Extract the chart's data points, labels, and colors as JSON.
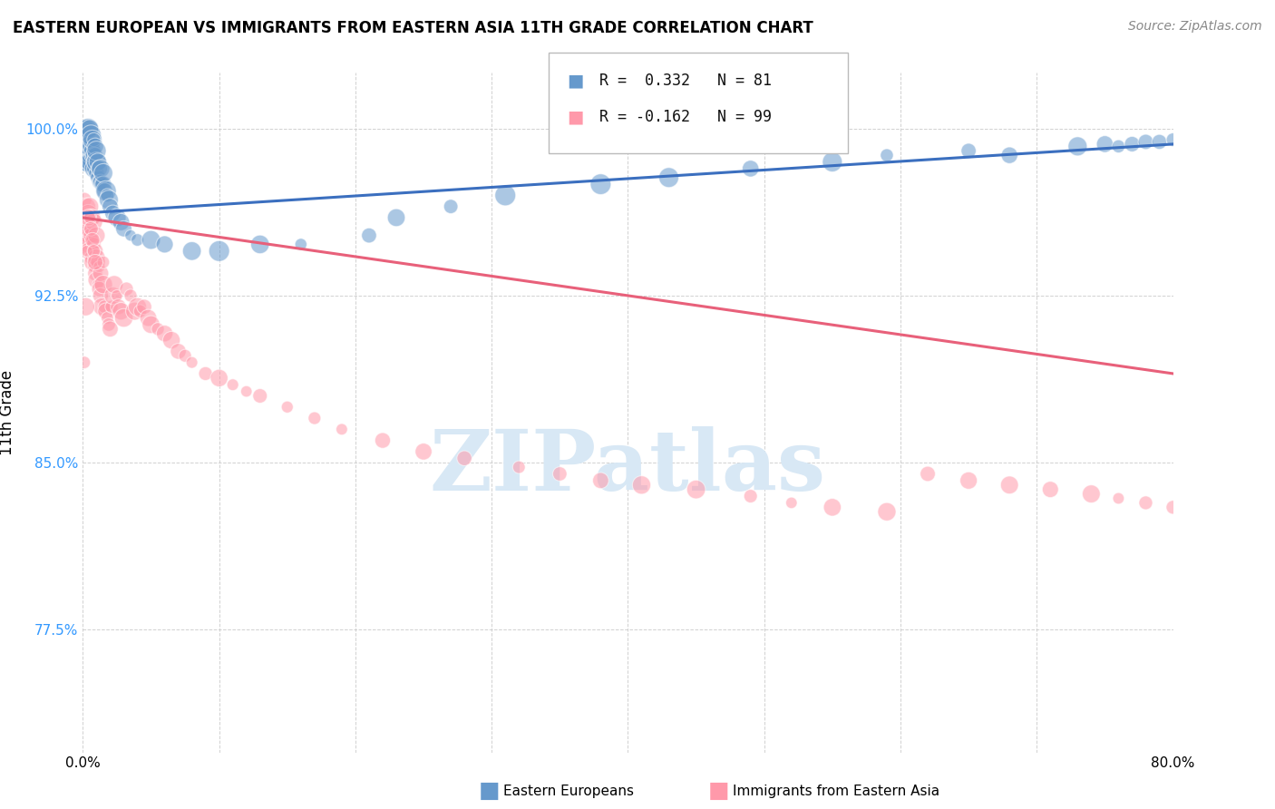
{
  "title": "EASTERN EUROPEAN VS IMMIGRANTS FROM EASTERN ASIA 11TH GRADE CORRELATION CHART",
  "source": "Source: ZipAtlas.com",
  "ylabel": "11th Grade",
  "xlim": [
    0.0,
    0.8
  ],
  "ylim": [
    0.72,
    1.025
  ],
  "x_ticks": [
    0.0,
    0.1,
    0.2,
    0.3,
    0.4,
    0.5,
    0.6,
    0.7,
    0.8
  ],
  "x_tick_labels": [
    "0.0%",
    "",
    "",
    "",
    "",
    "",
    "",
    "",
    "80.0%"
  ],
  "y_ticks": [
    0.775,
    0.85,
    0.925,
    1.0
  ],
  "y_tick_labels": [
    "77.5%",
    "85.0%",
    "92.5%",
    "100.0%"
  ],
  "blue_R": 0.332,
  "blue_N": 81,
  "pink_R": -0.162,
  "pink_N": 99,
  "blue_color": "#6699CC",
  "pink_color": "#FF99AA",
  "blue_line_color": "#3B6FBF",
  "pink_line_color": "#E8607A",
  "legend1_label": "Eastern Europeans",
  "legend2_label": "Immigrants from Eastern Asia",
  "watermark": "ZIPatlas",
  "blue_line_x0": 0.0,
  "blue_line_y0": 0.962,
  "blue_line_x1": 0.8,
  "blue_line_y1": 0.993,
  "pink_line_x0": 0.0,
  "pink_line_y0": 0.96,
  "pink_line_x1": 0.8,
  "pink_line_y1": 0.89,
  "blue_scatter_x": [
    0.001,
    0.001,
    0.001,
    0.002,
    0.002,
    0.002,
    0.002,
    0.003,
    0.003,
    0.003,
    0.003,
    0.003,
    0.004,
    0.004,
    0.004,
    0.004,
    0.005,
    0.005,
    0.005,
    0.005,
    0.005,
    0.006,
    0.006,
    0.006,
    0.006,
    0.007,
    0.007,
    0.007,
    0.008,
    0.008,
    0.008,
    0.009,
    0.009,
    0.009,
    0.01,
    0.01,
    0.01,
    0.011,
    0.011,
    0.012,
    0.012,
    0.013,
    0.013,
    0.014,
    0.015,
    0.015,
    0.016,
    0.017,
    0.018,
    0.019,
    0.02,
    0.022,
    0.025,
    0.028,
    0.03,
    0.035,
    0.04,
    0.05,
    0.06,
    0.08,
    0.1,
    0.13,
    0.16,
    0.21,
    0.23,
    0.27,
    0.31,
    0.38,
    0.43,
    0.49,
    0.55,
    0.59,
    0.65,
    0.68,
    0.73,
    0.75,
    0.76,
    0.77,
    0.78,
    0.79,
    0.8
  ],
  "blue_scatter_y": [
    0.99,
    0.985,
    0.995,
    0.985,
    0.99,
    0.995,
    1.0,
    0.985,
    0.99,
    0.995,
    1.0,
    0.985,
    0.985,
    0.99,
    0.995,
    1.0,
    0.985,
    0.988,
    0.992,
    0.995,
    1.0,
    0.985,
    0.988,
    0.992,
    0.997,
    0.985,
    0.99,
    0.995,
    0.982,
    0.988,
    0.995,
    0.982,
    0.988,
    0.992,
    0.98,
    0.985,
    0.99,
    0.978,
    0.985,
    0.976,
    0.982,
    0.976,
    0.982,
    0.975,
    0.975,
    0.98,
    0.972,
    0.972,
    0.97,
    0.968,
    0.965,
    0.962,
    0.96,
    0.958,
    0.955,
    0.952,
    0.95,
    0.95,
    0.948,
    0.945,
    0.945,
    0.948,
    0.948,
    0.952,
    0.96,
    0.965,
    0.97,
    0.975,
    0.978,
    0.982,
    0.985,
    0.988,
    0.99,
    0.988,
    0.992,
    0.993,
    0.992,
    0.993,
    0.994,
    0.994,
    0.995
  ],
  "pink_scatter_x": [
    0.001,
    0.001,
    0.002,
    0.002,
    0.003,
    0.003,
    0.003,
    0.004,
    0.004,
    0.004,
    0.005,
    0.005,
    0.005,
    0.006,
    0.006,
    0.006,
    0.007,
    0.007,
    0.007,
    0.008,
    0.008,
    0.008,
    0.009,
    0.009,
    0.01,
    0.01,
    0.01,
    0.011,
    0.011,
    0.012,
    0.012,
    0.013,
    0.013,
    0.014,
    0.015,
    0.015,
    0.016,
    0.017,
    0.018,
    0.019,
    0.02,
    0.021,
    0.022,
    0.023,
    0.025,
    0.026,
    0.028,
    0.03,
    0.032,
    0.035,
    0.038,
    0.04,
    0.042,
    0.045,
    0.048,
    0.05,
    0.055,
    0.06,
    0.065,
    0.07,
    0.075,
    0.08,
    0.09,
    0.1,
    0.11,
    0.12,
    0.13,
    0.15,
    0.17,
    0.19,
    0.22,
    0.25,
    0.28,
    0.32,
    0.35,
    0.38,
    0.41,
    0.45,
    0.49,
    0.52,
    0.55,
    0.59,
    0.62,
    0.65,
    0.68,
    0.71,
    0.74,
    0.76,
    0.78,
    0.8,
    0.001,
    0.002,
    0.003,
    0.004,
    0.005,
    0.006,
    0.007,
    0.008,
    0.009
  ],
  "pink_scatter_y": [
    0.968,
    0.955,
    0.96,
    0.95,
    0.96,
    0.952,
    0.965,
    0.948,
    0.955,
    0.962,
    0.945,
    0.955,
    0.965,
    0.942,
    0.952,
    0.96,
    0.94,
    0.95,
    0.96,
    0.938,
    0.948,
    0.958,
    0.935,
    0.945,
    0.932,
    0.942,
    0.952,
    0.93,
    0.94,
    0.928,
    0.938,
    0.925,
    0.935,
    0.92,
    0.93,
    0.94,
    0.92,
    0.918,
    0.915,
    0.912,
    0.91,
    0.92,
    0.925,
    0.93,
    0.925,
    0.92,
    0.918,
    0.915,
    0.928,
    0.925,
    0.918,
    0.92,
    0.918,
    0.92,
    0.915,
    0.912,
    0.91,
    0.908,
    0.905,
    0.9,
    0.898,
    0.895,
    0.89,
    0.888,
    0.885,
    0.882,
    0.88,
    0.875,
    0.87,
    0.865,
    0.86,
    0.855,
    0.852,
    0.848,
    0.845,
    0.842,
    0.84,
    0.838,
    0.835,
    0.832,
    0.83,
    0.828,
    0.845,
    0.842,
    0.84,
    0.838,
    0.836,
    0.834,
    0.832,
    0.83,
    0.895,
    0.92,
    0.945,
    0.96,
    0.96,
    0.955,
    0.95,
    0.945,
    0.94
  ]
}
